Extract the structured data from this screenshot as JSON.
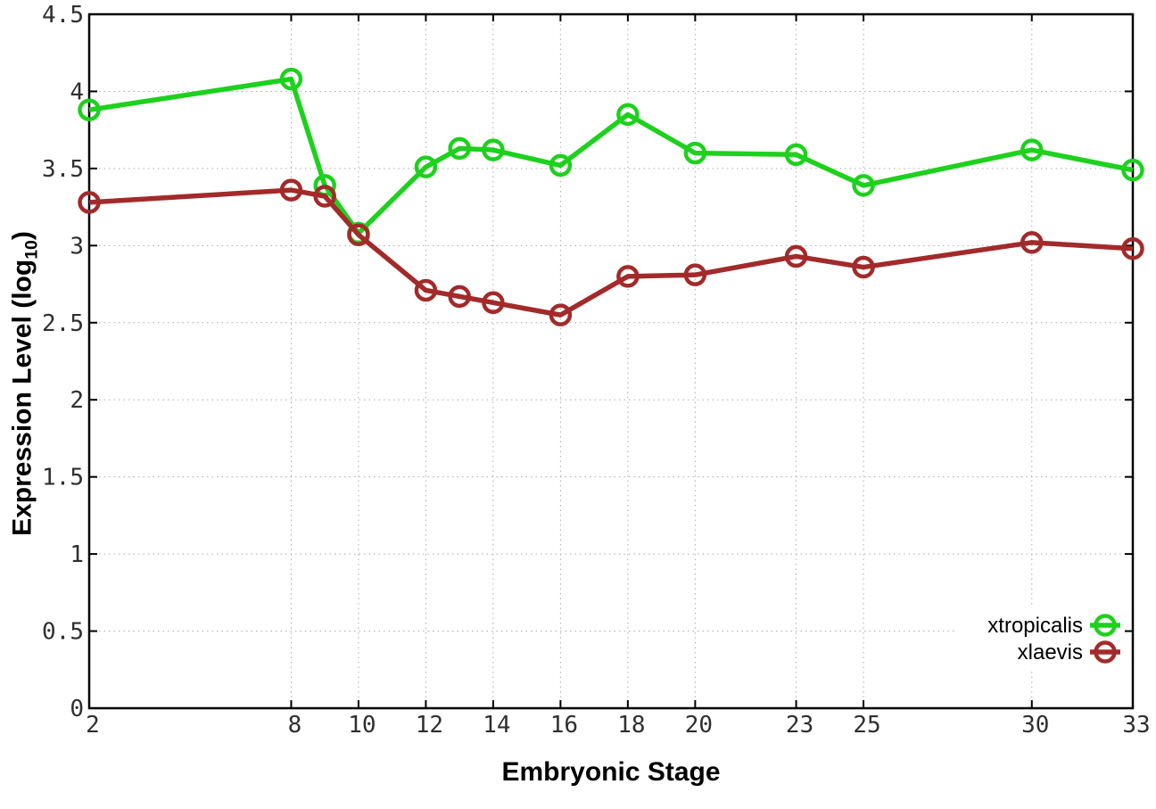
{
  "page": {
    "background": "#ffffff"
  },
  "axes": {
    "x_title": "Embryonic Stage",
    "y_title_main": "Expression Level (log",
    "y_title_sub": "10",
    "y_title_close": ")"
  },
  "chart_data": {
    "type": "line",
    "title": "",
    "xlabel": "Embryonic Stage",
    "ylabel": "Expression Level (log10)",
    "xlim": [
      2,
      33
    ],
    "ylim": [
      0,
      4.5
    ],
    "grid": true,
    "legend_position": "inside-bottom-right",
    "x": [
      2,
      8,
      9,
      10,
      12,
      13,
      14,
      16,
      18,
      20,
      23,
      25,
      30,
      33
    ],
    "x_tick_values": [
      2,
      8,
      10,
      12,
      14,
      16,
      18,
      20,
      23,
      25,
      30,
      33
    ],
    "x_tick_labels": [
      "2",
      "8",
      "10",
      "12",
      "14",
      "16",
      "18",
      "20",
      "23",
      "25",
      "30",
      "33"
    ],
    "y_tick_values": [
      0,
      0.5,
      1,
      1.5,
      2,
      2.5,
      3,
      3.5,
      4,
      4.5
    ],
    "y_tick_labels": [
      "0",
      "0.5",
      "1",
      "1.5",
      "2",
      "2.5",
      "3",
      "3.5",
      "4",
      "4.5"
    ],
    "series": [
      {
        "name": "xtropicalis",
        "color": "#1dd11d",
        "values": [
          3.88,
          4.08,
          3.39,
          3.08,
          3.51,
          3.63,
          3.62,
          3.52,
          3.85,
          3.6,
          3.59,
          3.39,
          3.62,
          3.49
        ]
      },
      {
        "name": "xlaevis",
        "color": "#a32a2a",
        "values": [
          3.28,
          3.36,
          3.32,
          3.07,
          2.71,
          2.67,
          2.63,
          2.55,
          2.8,
          2.81,
          2.93,
          2.86,
          3.02,
          2.98
        ]
      }
    ]
  },
  "style": {
    "grid_color": "#ababab",
    "axis_color": "#000000",
    "tick_label_color": "#2f2f2f",
    "legend_bg": "#ffffff"
  }
}
